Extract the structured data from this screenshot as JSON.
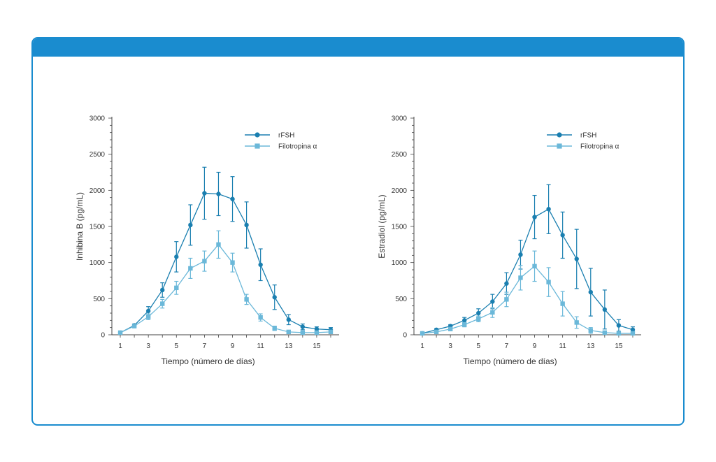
{
  "colors": {
    "header": "#1a8ccf",
    "rfsh": "#1a7fb0",
    "filotropina": "#6bb8d9",
    "axis": "#444444"
  },
  "chart_data": [
    {
      "type": "line",
      "ylabel": "Inhibina B (pg/mL)",
      "xlabel": "Tiempo (número de días)",
      "ylim": [
        0,
        3000
      ],
      "xlim": [
        1,
        16
      ],
      "yticks": [
        0,
        500,
        1000,
        1500,
        2000,
        2500,
        3000
      ],
      "xticks": [
        1,
        3,
        5,
        7,
        9,
        11,
        13,
        15
      ],
      "legend": "top-right",
      "series": [
        {
          "name": "rFSH",
          "marker": "circle",
          "x": [
            1,
            2,
            3,
            4,
            5,
            6,
            7,
            8,
            9,
            10,
            11,
            12,
            13,
            14,
            15,
            16
          ],
          "y": [
            30,
            130,
            330,
            620,
            1080,
            1520,
            1960,
            1950,
            1880,
            1520,
            970,
            520,
            210,
            110,
            80,
            70
          ],
          "err": [
            20,
            20,
            60,
            100,
            210,
            280,
            360,
            300,
            310,
            320,
            220,
            170,
            70,
            40,
            30,
            30
          ]
        },
        {
          "name": "Filotropina α",
          "marker": "square",
          "x": [
            1,
            2,
            3,
            4,
            5,
            6,
            7,
            8,
            9,
            10,
            11,
            12,
            13,
            14,
            15,
            16
          ],
          "y": [
            30,
            120,
            250,
            430,
            650,
            920,
            1020,
            1250,
            1000,
            490,
            240,
            90,
            40,
            30,
            30,
            40
          ],
          "err": [
            20,
            20,
            40,
            60,
            90,
            140,
            140,
            190,
            130,
            70,
            50,
            30,
            20,
            15,
            15,
            15
          ]
        }
      ]
    },
    {
      "type": "line",
      "ylabel": "Estradiol (pg/mL)",
      "xlabel": "Tiempo (número de días)",
      "ylim": [
        0,
        3000
      ],
      "xlim": [
        1,
        16
      ],
      "yticks": [
        0,
        500,
        1000,
        1500,
        2000,
        2500,
        3000
      ],
      "xticks": [
        1,
        3,
        5,
        7,
        9,
        11,
        13,
        15
      ],
      "legend": "top-right",
      "series": [
        {
          "name": "rFSH",
          "marker": "circle",
          "x": [
            1,
            2,
            3,
            4,
            5,
            6,
            7,
            8,
            9,
            10,
            11,
            12,
            13,
            14,
            15,
            16
          ],
          "y": [
            20,
            70,
            120,
            200,
            300,
            460,
            710,
            1110,
            1630,
            1740,
            1380,
            1050,
            590,
            350,
            130,
            70
          ],
          "err": [
            10,
            15,
            20,
            40,
            60,
            100,
            150,
            200,
            300,
            340,
            320,
            410,
            330,
            270,
            80,
            40
          ]
        },
        {
          "name": "Filotropina α",
          "marker": "square",
          "x": [
            1,
            2,
            3,
            4,
            5,
            6,
            7,
            8,
            9,
            10,
            11,
            12,
            13,
            14,
            15,
            16
          ],
          "y": [
            20,
            40,
            80,
            140,
            220,
            310,
            490,
            790,
            950,
            730,
            430,
            170,
            60,
            30,
            20,
            20
          ],
          "err": [
            10,
            10,
            20,
            30,
            40,
            70,
            100,
            170,
            210,
            200,
            170,
            80,
            40,
            20,
            10,
            10
          ]
        }
      ]
    }
  ]
}
